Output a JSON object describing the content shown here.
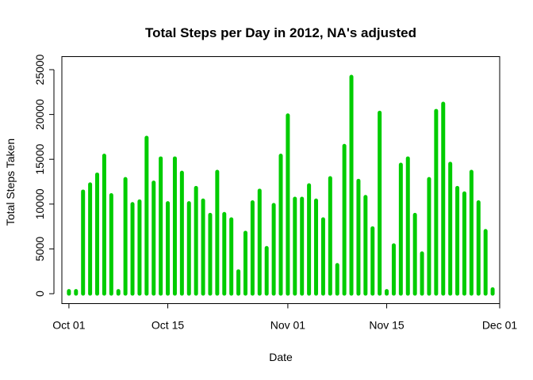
{
  "chart_data": {
    "type": "bar",
    "title": "Total Steps per Day in 2012, NA's adjusted",
    "xlabel": "Date",
    "ylabel": "Total Steps Taken",
    "color": "#00CC00",
    "x_start": "2012-10-01",
    "xlim": [
      "2012-09-30",
      "2012-12-01"
    ],
    "ylim": [
      0,
      25000
    ],
    "x_ticks": [
      {
        "date": "2012-10-01",
        "label": "Oct 01"
      },
      {
        "date": "2012-10-15",
        "label": "Oct 15"
      },
      {
        "date": "2012-11-01",
        "label": "Nov 01"
      },
      {
        "date": "2012-11-15",
        "label": "Nov 15"
      },
      {
        "date": "2012-12-01",
        "label": "Dec 01"
      }
    ],
    "y_ticks": [
      0,
      5000,
      10000,
      15000,
      20000,
      25000
    ],
    "grid": false,
    "dates": [
      "2012-10-01",
      "2012-10-02",
      "2012-10-03",
      "2012-10-04",
      "2012-10-05",
      "2012-10-06",
      "2012-10-07",
      "2012-10-08",
      "2012-10-09",
      "2012-10-10",
      "2012-10-11",
      "2012-10-12",
      "2012-10-13",
      "2012-10-14",
      "2012-10-15",
      "2012-10-16",
      "2012-10-17",
      "2012-10-18",
      "2012-10-19",
      "2012-10-20",
      "2012-10-21",
      "2012-10-22",
      "2012-10-23",
      "2012-10-24",
      "2012-10-25",
      "2012-10-26",
      "2012-10-27",
      "2012-10-28",
      "2012-10-29",
      "2012-10-30",
      "2012-10-31",
      "2012-11-01",
      "2012-11-02",
      "2012-11-03",
      "2012-11-04",
      "2012-11-05",
      "2012-11-06",
      "2012-11-07",
      "2012-11-08",
      "2012-11-09",
      "2012-11-10",
      "2012-11-11",
      "2012-11-12",
      "2012-11-13",
      "2012-11-14",
      "2012-11-15",
      "2012-11-16",
      "2012-11-17",
      "2012-11-18",
      "2012-11-19",
      "2012-11-20",
      "2012-11-21",
      "2012-11-22",
      "2012-11-23",
      "2012-11-24",
      "2012-11-25",
      "2012-11-26",
      "2012-11-27",
      "2012-11-28",
      "2012-11-29",
      "2012-11-30"
    ],
    "values": [
      300,
      300,
      11400,
      12200,
      13300,
      15400,
      11000,
      300,
      12800,
      10000,
      10300,
      17400,
      12400,
      15100,
      10100,
      15100,
      13500,
      10100,
      11800,
      10400,
      8800,
      13600,
      8900,
      8300,
      2500,
      6800,
      10200,
      11500,
      5100,
      9900,
      15400,
      19900,
      10600,
      10600,
      12100,
      10400,
      8300,
      12900,
      3200,
      16500,
      24200,
      12600,
      10800,
      7300,
      20200,
      300,
      5400,
      14400,
      15100,
      8800,
      4500,
      12800,
      20400,
      21200,
      14500,
      11800,
      11200,
      13600,
      10200,
      7000,
      500
    ]
  }
}
